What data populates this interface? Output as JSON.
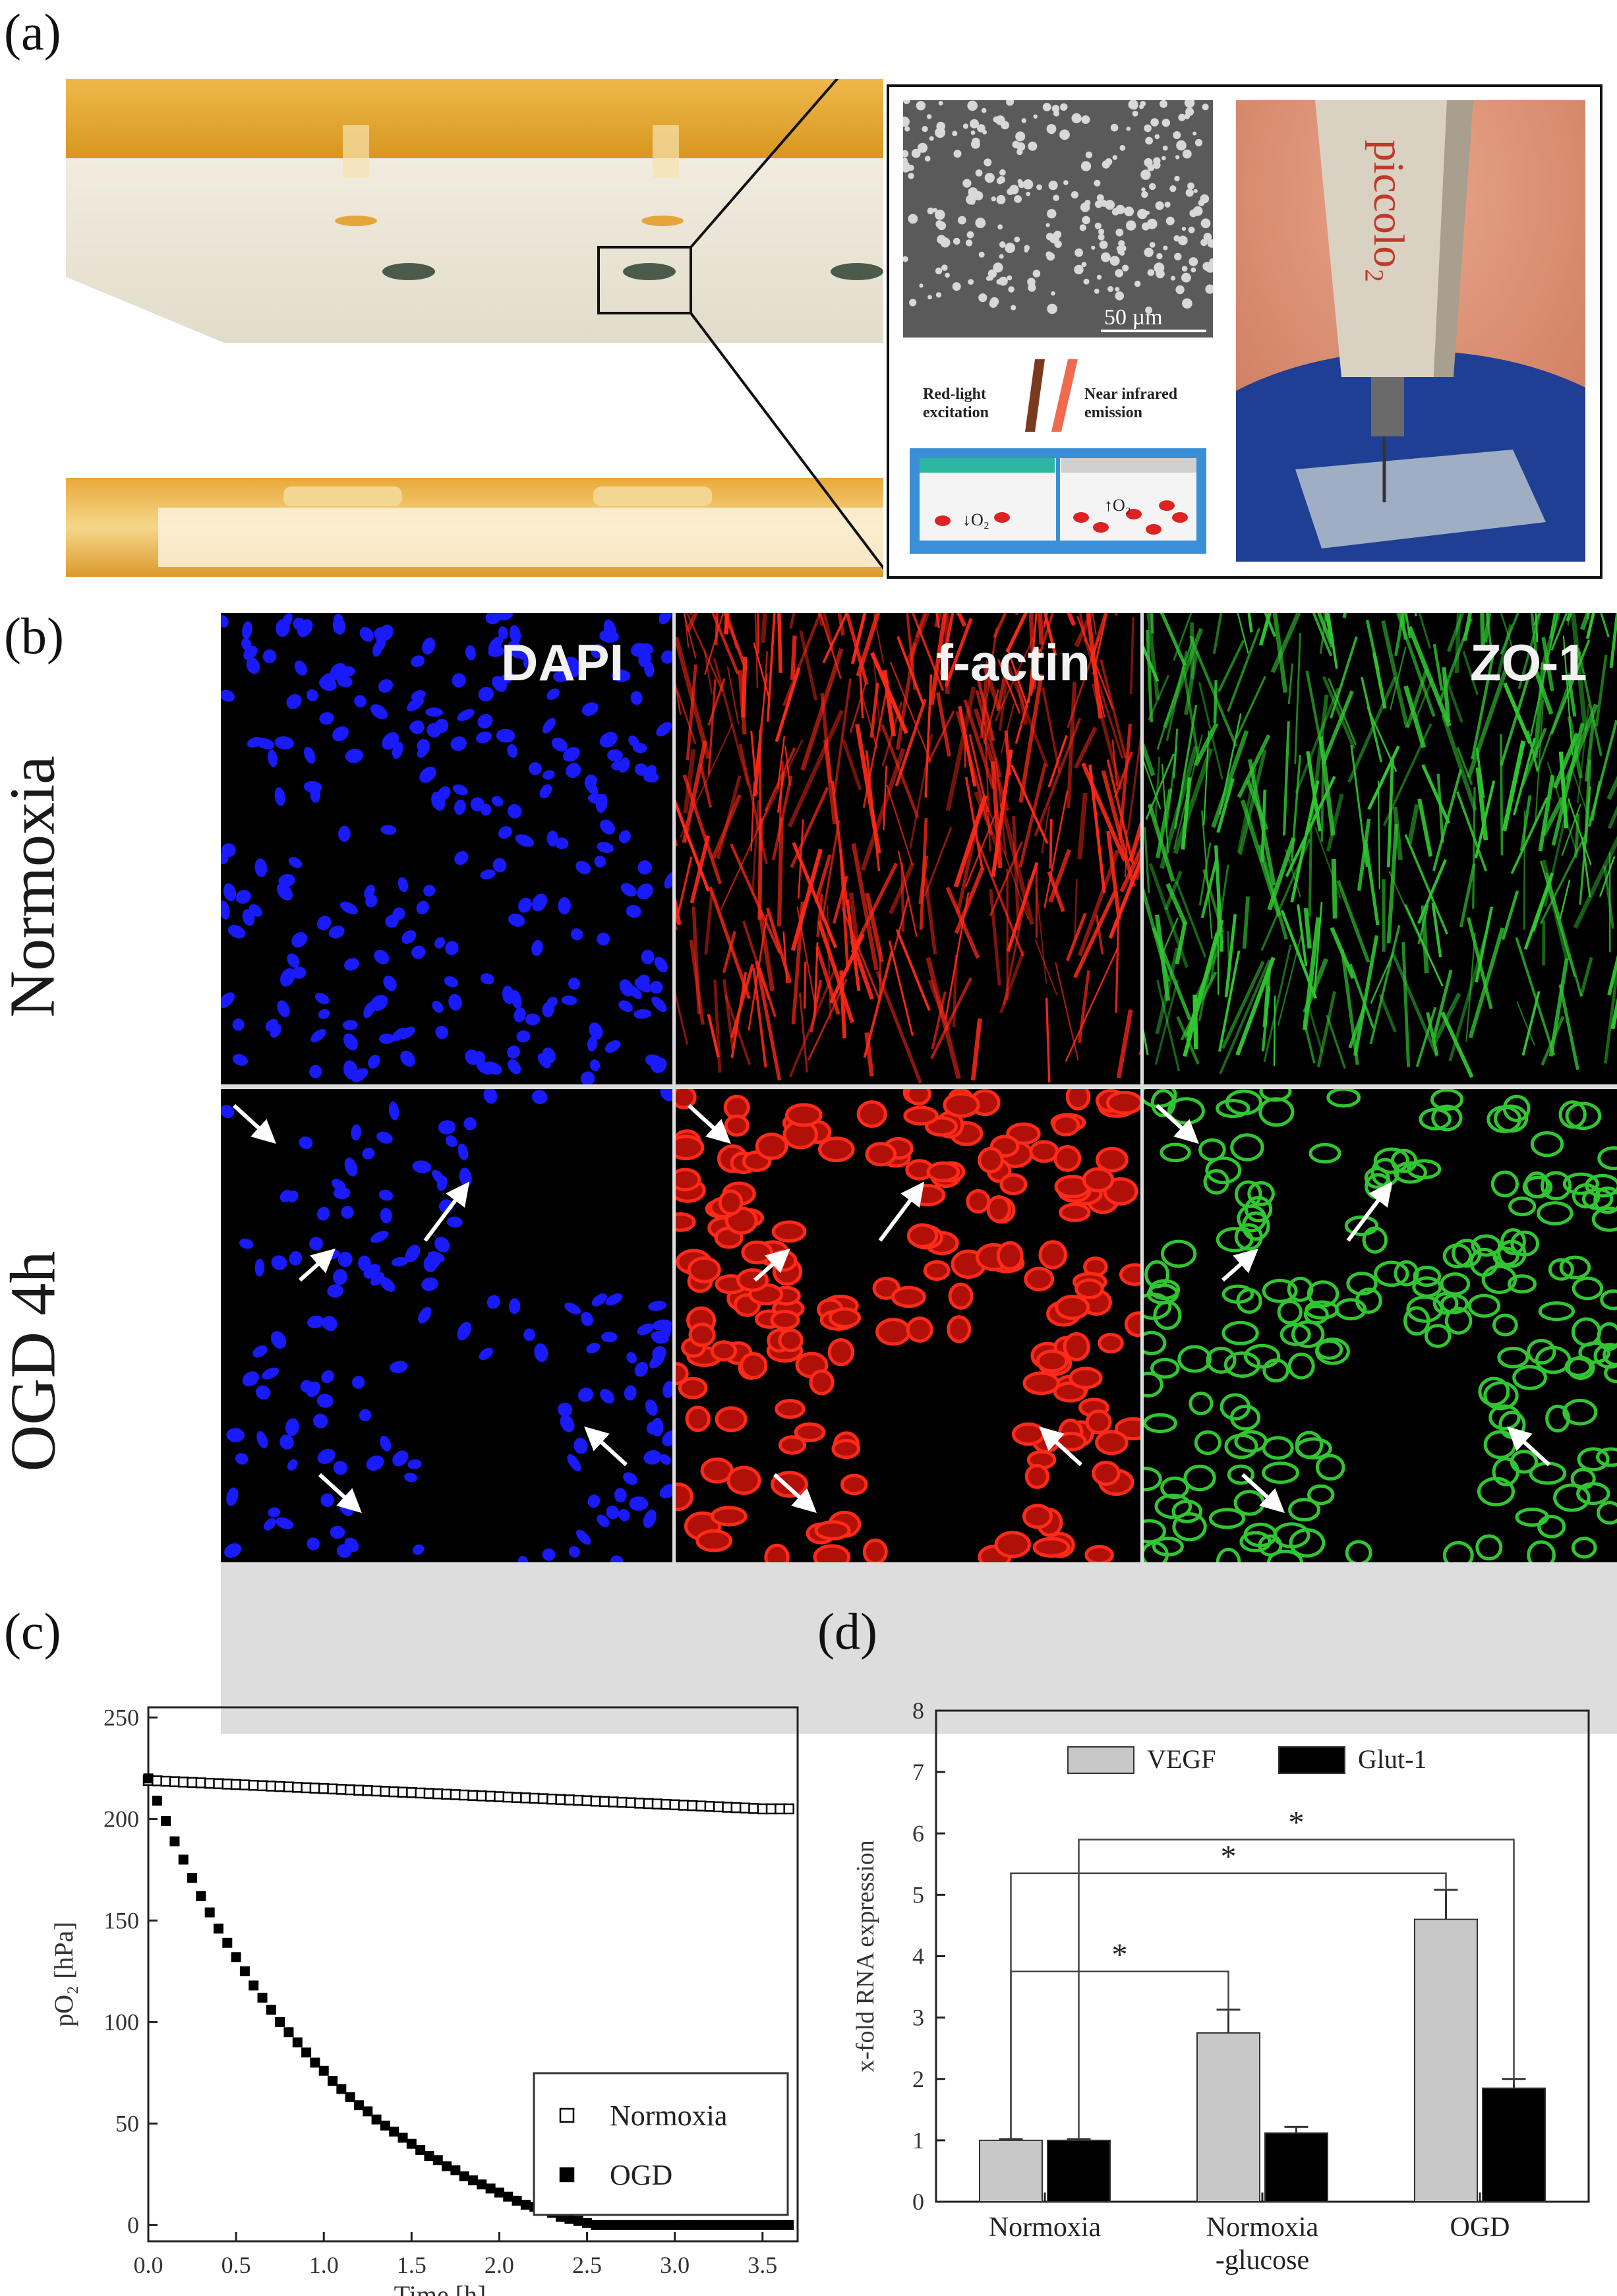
{
  "panels": {
    "a": {
      "label": "(a)",
      "sem_scale": "50 µm",
      "excitation_label": "Red-light\nexcitation",
      "emission_label": "Near infrared\nemission",
      "o2_low": "↓O₂",
      "o2_high": "↑O₂",
      "device_text": "piccolo₂"
    },
    "b": {
      "label": "(b)",
      "channels": [
        "DAPI",
        "f-actin",
        "ZO-1"
      ],
      "rows": [
        "Normoxia",
        "OGD 4h"
      ],
      "colors": {
        "dapi": "#1a1aff",
        "actin": "#ff1a10",
        "zo1": "#2ec22e"
      }
    },
    "c": {
      "label": "(c)"
    },
    "d": {
      "label": "(d)"
    }
  },
  "chart_data": [
    {
      "id": "c",
      "type": "scatter",
      "xlabel": "Time [h]",
      "ylabel": "pO₂ [hPa]",
      "xlim": [
        0,
        3.7
      ],
      "ylim": [
        -8,
        255
      ],
      "xticks": [
        "0.0",
        "0.5",
        "1.0",
        "1.5",
        "2.0",
        "2.5",
        "3.0",
        "3.5"
      ],
      "xtick_values": [
        0,
        0.5,
        1.0,
        1.5,
        2.0,
        2.5,
        3.0,
        3.5
      ],
      "yticks": [
        "0",
        "50",
        "100",
        "150",
        "200",
        "250"
      ],
      "ytick_values": [
        0,
        50,
        100,
        150,
        200,
        250
      ],
      "legend_position": "bottom-right",
      "series": [
        {
          "name": "Normoxia",
          "marker": "open-square",
          "x": [
            0.0,
            0.05,
            0.1,
            0.15,
            0.2,
            0.25,
            0.3,
            0.35,
            0.4,
            0.45,
            0.5,
            0.55,
            0.6,
            0.65,
            0.7,
            0.75,
            0.8,
            0.85,
            0.9,
            0.95,
            1.0,
            1.05,
            1.1,
            1.15,
            1.2,
            1.25,
            1.3,
            1.35,
            1.4,
            1.45,
            1.5,
            1.55,
            1.6,
            1.65,
            1.7,
            1.75,
            1.8,
            1.85,
            1.9,
            1.95,
            2.0,
            2.05,
            2.1,
            2.15,
            2.2,
            2.25,
            2.3,
            2.35,
            2.4,
            2.45,
            2.5,
            2.55,
            2.6,
            2.65,
            2.7,
            2.75,
            2.8,
            2.85,
            2.9,
            2.95,
            3.0,
            3.05,
            3.1,
            3.15,
            3.2,
            3.25,
            3.3,
            3.35,
            3.4,
            3.45,
            3.5,
            3.55,
            3.6,
            3.65
          ],
          "y": [
            219.0,
            218.8,
            218.6,
            218.4,
            218.2,
            218.0,
            217.8,
            217.6,
            217.4,
            217.2,
            217.0,
            216.8,
            216.6,
            216.4,
            216.2,
            216.0,
            215.8,
            215.6,
            215.4,
            215.2,
            215.0,
            214.8,
            214.6,
            214.4,
            214.2,
            214.0,
            213.8,
            213.6,
            213.4,
            213.2,
            213.0,
            212.8,
            212.6,
            212.4,
            212.2,
            212.0,
            211.8,
            211.6,
            211.4,
            211.2,
            211.0,
            210.8,
            210.6,
            210.4,
            210.2,
            210.0,
            209.8,
            209.6,
            209.4,
            209.2,
            209.0,
            208.8,
            208.6,
            208.4,
            208.2,
            208.0,
            207.8,
            207.6,
            207.4,
            207.2,
            207.0,
            206.8,
            206.6,
            206.4,
            206.2,
            206.0,
            205.8,
            205.6,
            205.4,
            205.2,
            205.0,
            205.0,
            205.0,
            205.0
          ]
        },
        {
          "name": "OGD",
          "marker": "filled-square",
          "x": [
            0.0,
            0.05,
            0.1,
            0.15,
            0.2,
            0.25,
            0.3,
            0.35,
            0.4,
            0.45,
            0.5,
            0.55,
            0.6,
            0.65,
            0.7,
            0.75,
            0.8,
            0.85,
            0.9,
            0.95,
            1.0,
            1.05,
            1.1,
            1.15,
            1.2,
            1.25,
            1.3,
            1.35,
            1.4,
            1.45,
            1.5,
            1.55,
            1.6,
            1.65,
            1.7,
            1.75,
            1.8,
            1.85,
            1.9,
            1.95,
            2.0,
            2.05,
            2.1,
            2.15,
            2.2,
            2.25,
            2.3,
            2.35,
            2.4,
            2.45,
            2.5,
            2.55,
            2.6,
            2.65,
            2.7,
            2.75,
            2.8,
            2.85,
            2.9,
            2.95,
            3.0,
            3.05,
            3.1,
            3.15,
            3.2,
            3.25,
            3.3,
            3.35,
            3.4,
            3.45,
            3.5,
            3.55,
            3.6,
            3.65
          ],
          "y": [
            220,
            209,
            199,
            189,
            180,
            171,
            162,
            154,
            146,
            139,
            132,
            125,
            118,
            112,
            106,
            100,
            95,
            90,
            85,
            80,
            76,
            71,
            67,
            63,
            59,
            56,
            52,
            49,
            46,
            43,
            40,
            37,
            34,
            32,
            29,
            27,
            24,
            22,
            20,
            18,
            16,
            14,
            12,
            10,
            9,
            7,
            6,
            4,
            3,
            2,
            1,
            0,
            0,
            0,
            0,
            0,
            0,
            0,
            0,
            0,
            0,
            0,
            0,
            0,
            0,
            0,
            0,
            0,
            0,
            0,
            0,
            0,
            0,
            0
          ]
        }
      ]
    },
    {
      "id": "d",
      "type": "bar",
      "xlabel": "",
      "ylabel": "x-fold RNA expression",
      "ylim": [
        0,
        8
      ],
      "yticks": [
        "0",
        "1",
        "2",
        "3",
        "4",
        "5",
        "6",
        "7",
        "8"
      ],
      "ytick_values": [
        0,
        1,
        2,
        3,
        4,
        5,
        6,
        7,
        8
      ],
      "categories": [
        "Normoxia",
        "Normoxia\n-glucose",
        "OGD"
      ],
      "legend_position": "top",
      "series": [
        {
          "name": "VEGF",
          "color": "#c8c8c8",
          "values": [
            1.0,
            2.75,
            4.6
          ],
          "errors": [
            0.02,
            0.38,
            0.48
          ]
        },
        {
          "name": "Glut-1",
          "color": "#000000",
          "values": [
            1.0,
            1.12,
            1.85
          ],
          "errors": [
            0.02,
            0.1,
            0.15
          ]
        }
      ],
      "annotations": [
        {
          "text": "*",
          "from": "Normoxia:VEGF",
          "to": "Normoxia\n-glucose:VEGF",
          "y": 3.75
        },
        {
          "text": "*",
          "from": "Normoxia:VEGF",
          "to": "OGD:VEGF",
          "y": 5.35
        },
        {
          "text": "*",
          "from": "Normoxia:Glut-1",
          "to": "OGD:Glut-1",
          "y": 5.9
        }
      ]
    }
  ]
}
